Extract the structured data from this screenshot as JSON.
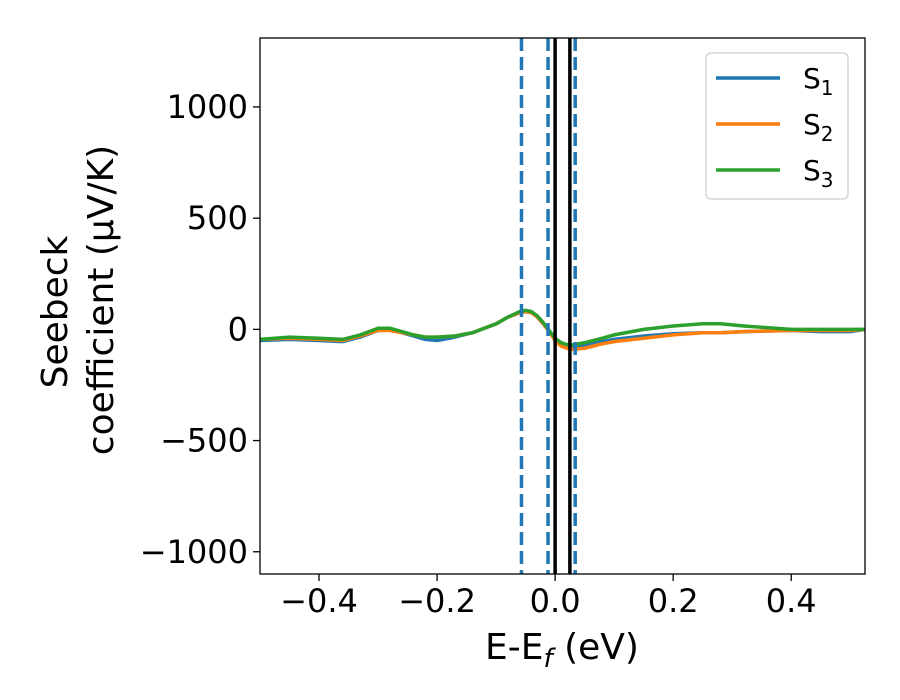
{
  "chart_data": {
    "type": "line",
    "title": "",
    "xlabel": "E-E",
    "xlabel_sub": "f",
    "xlabel_unit": " (eV)",
    "ylabel_line1": "Seebeck",
    "ylabel_line2": "coefficient  (μV/K)",
    "xlim": [
      -0.5,
      0.525
    ],
    "ylim": [
      -1100,
      1310
    ],
    "xticks": [
      -0.4,
      -0.2,
      0.0,
      0.2,
      0.4
    ],
    "xtick_labels": [
      "−0.4",
      "−0.2",
      "0.0",
      "0.2",
      "0.4"
    ],
    "yticks": [
      -1000,
      -500,
      0,
      500,
      1000
    ],
    "ytick_labels": [
      "−1000",
      "−500",
      "0",
      "500",
      "1000"
    ],
    "grid": false,
    "legend_position": "top-right",
    "x": [
      -0.5,
      -0.45,
      -0.4,
      -0.36,
      -0.33,
      -0.3,
      -0.28,
      -0.26,
      -0.24,
      -0.22,
      -0.2,
      -0.17,
      -0.14,
      -0.12,
      -0.1,
      -0.08,
      -0.06,
      -0.05,
      -0.04,
      -0.03,
      -0.02,
      -0.01,
      0.0,
      0.01,
      0.02,
      0.03,
      0.05,
      0.08,
      0.1,
      0.15,
      0.2,
      0.25,
      0.28,
      0.32,
      0.4,
      0.45,
      0.5,
      0.525
    ],
    "series": [
      {
        "name": "S",
        "sub": "1",
        "color": "#1f77b4",
        "values": [
          -50,
          -45,
          -50,
          -55,
          -35,
          -5,
          0,
          -15,
          -30,
          -45,
          -50,
          -35,
          -15,
          5,
          25,
          55,
          75,
          80,
          75,
          55,
          25,
          -10,
          -45,
          -65,
          -75,
          -80,
          -75,
          -55,
          -45,
          -30,
          -20,
          -15,
          -15,
          -10,
          -5,
          -10,
          -10,
          0
        ]
      },
      {
        "name": "S",
        "sub": "2",
        "color": "#ff7f0e",
        "values": [
          -45,
          -40,
          -45,
          -50,
          -30,
          -5,
          -5,
          -15,
          -25,
          -35,
          -35,
          -30,
          -15,
          5,
          25,
          55,
          75,
          80,
          75,
          55,
          25,
          -10,
          -50,
          -75,
          -85,
          -90,
          -85,
          -65,
          -55,
          -40,
          -25,
          -15,
          -15,
          -10,
          -5,
          -5,
          -5,
          0
        ]
      },
      {
        "name": "S",
        "sub": "3",
        "color": "#2ca02c",
        "values": [
          -45,
          -35,
          -40,
          -45,
          -25,
          5,
          5,
          -10,
          -25,
          -35,
          -35,
          -30,
          -15,
          5,
          25,
          55,
          80,
          85,
          80,
          60,
          30,
          -5,
          -40,
          -60,
          -68,
          -70,
          -60,
          -40,
          -25,
          0,
          15,
          25,
          25,
          15,
          0,
          0,
          0,
          0
        ]
      }
    ],
    "vertical_lines": [
      {
        "x": -0.057,
        "style": "dashed",
        "color": "#1f77b4"
      },
      {
        "x": -0.012,
        "style": "dashed",
        "color": "#1f77b4"
      },
      {
        "x": 0.034,
        "style": "dashed",
        "color": "#1f77b4"
      },
      {
        "x": 0.0,
        "style": "solid",
        "color": "#000000"
      },
      {
        "x": 0.025,
        "style": "solid",
        "color": "#000000"
      }
    ]
  }
}
